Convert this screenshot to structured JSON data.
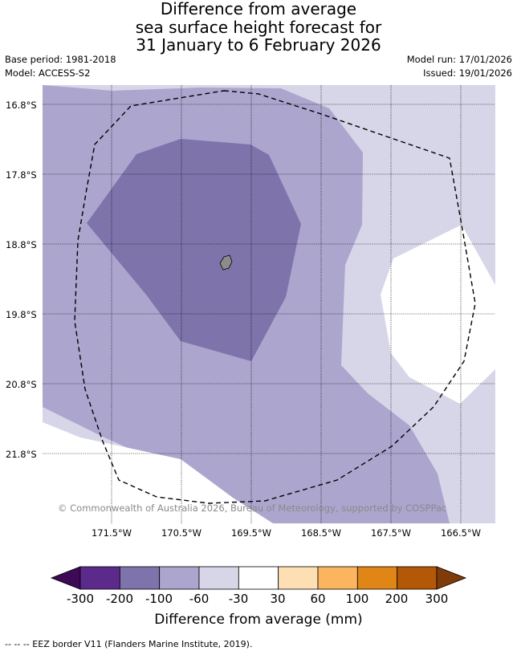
{
  "title": {
    "line1": "Difference from average",
    "line2": "sea surface height forecast for",
    "line3": "31 January to 6 February 2026"
  },
  "meta": {
    "base_period": "Base period: 1981-2018",
    "model": "Model: ACCESS-S2",
    "model_run": "Model run: 17/01/2026",
    "issued": "Issued: 19/01/2026"
  },
  "map": {
    "lat_labels": [
      "16.8°S",
      "17.8°S",
      "18.8°S",
      "19.8°S",
      "20.8°S",
      "21.8°S"
    ],
    "lon_labels": [
      "171.5°W",
      "170.5°W",
      "169.5°W",
      "168.5°W",
      "167.5°W",
      "166.5°W"
    ],
    "copyright": "© Commonwealth of Australia 2026, Bureau of Meteorology, supported by COSPPac",
    "colors": {
      "band_m100_m60": "#aca5ce",
      "band_m60_m30": "#d6d6e8",
      "band_m200_m100": "#7f73ab",
      "band_m30_30": "#ffffff",
      "land": "#8c8c8c"
    }
  },
  "colorbar": {
    "ticks": [
      "-300",
      "-200",
      "-100",
      "-60",
      "-30",
      "30",
      "60",
      "100",
      "200",
      "300"
    ],
    "label": "Difference from average (mm)",
    "colors": [
      "#3d0a55",
      "#5b2a8b",
      "#7f73ab",
      "#aca5ce",
      "#d6d6e8",
      "#ffffff",
      "#fddfb3",
      "#fbb55e",
      "#e08617",
      "#b35806",
      "#7f3b08"
    ]
  },
  "legend": {
    "eez_note": "--  --  -- EEZ border V11 (Flanders Marine Institute, 2019)."
  }
}
